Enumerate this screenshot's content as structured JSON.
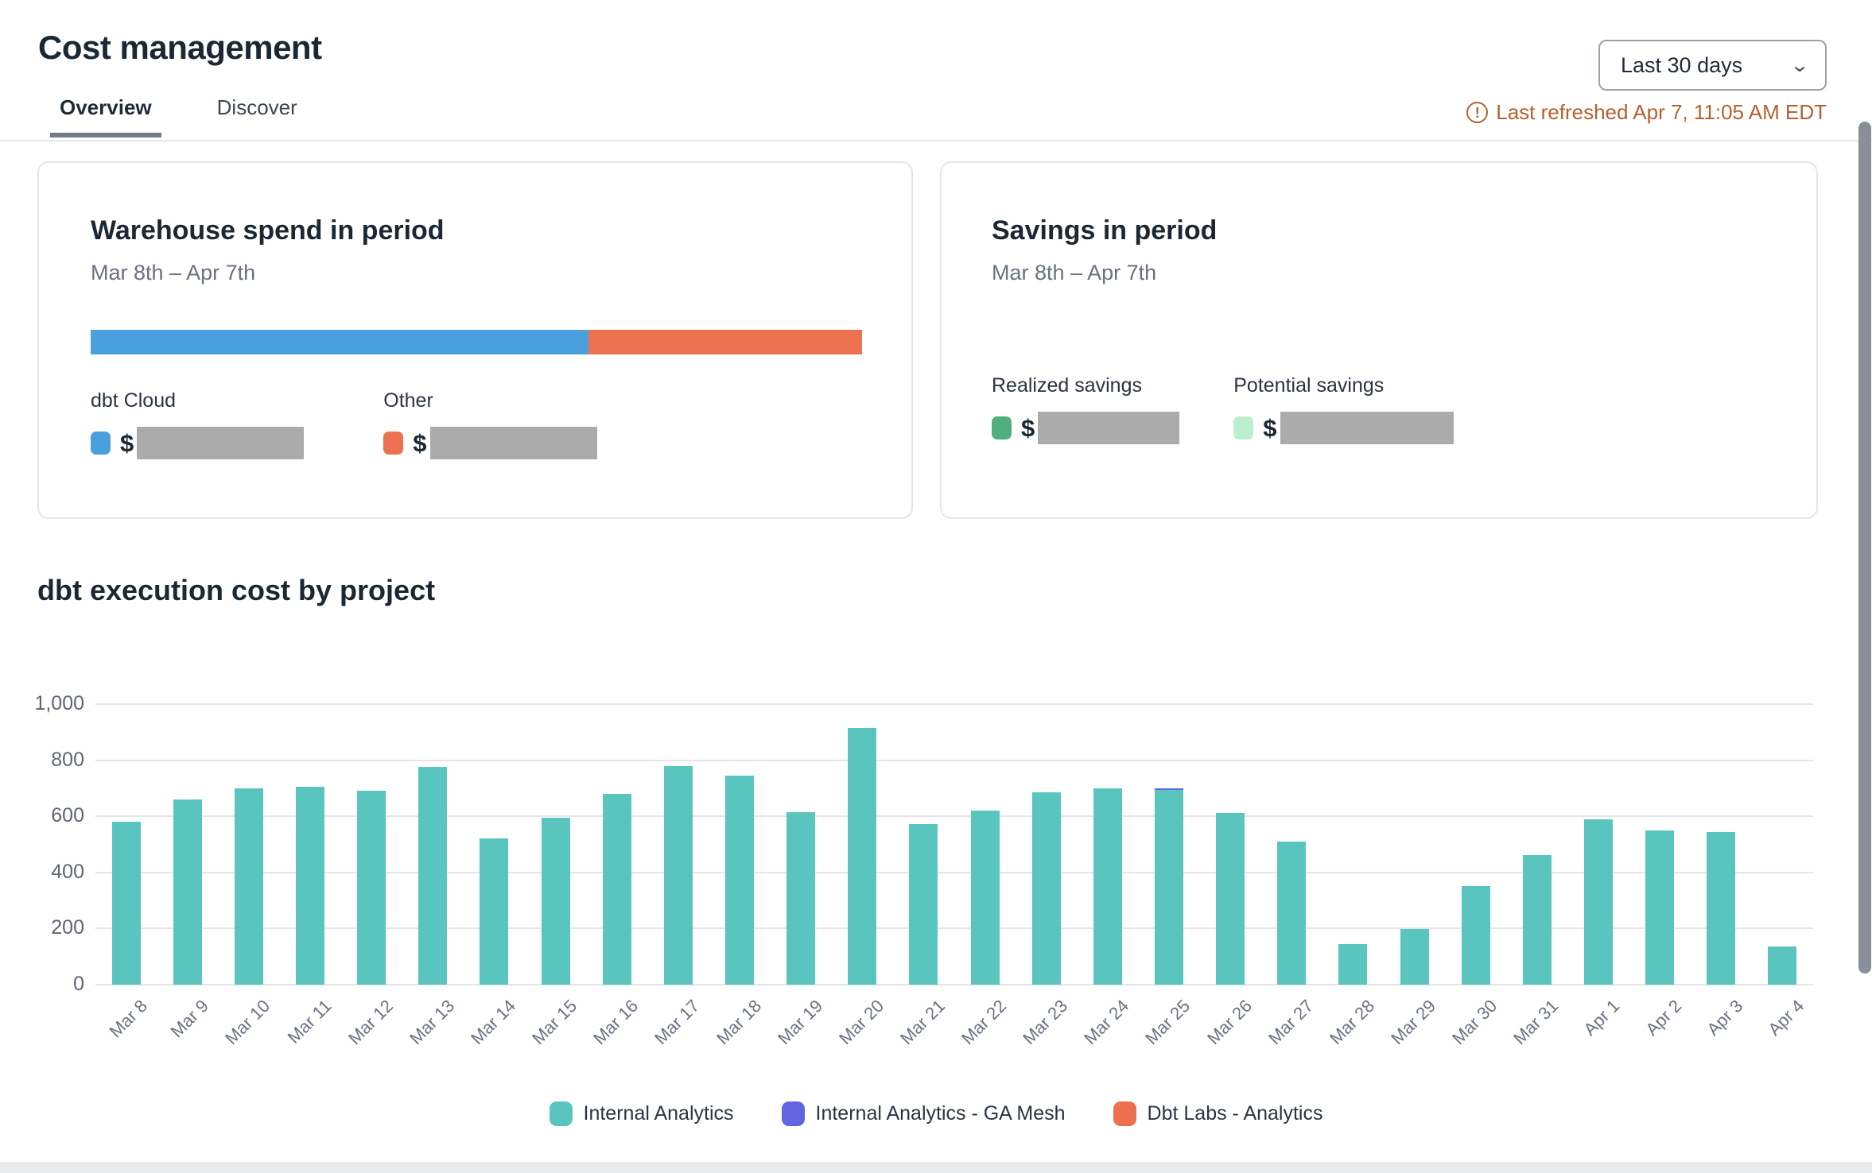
{
  "header": {
    "title": "Cost management",
    "tabs": [
      {
        "label": "Overview",
        "active": true
      },
      {
        "label": "Discover",
        "active": false
      }
    ],
    "range_selector": {
      "value": "Last 30 days",
      "chevron_icon": "chevron-down-icon"
    },
    "last_refreshed": "Last refreshed Apr 7, 11:05 AM EDT",
    "warning_icon": "exclamation-circle-icon",
    "warning_color": "#b4612e"
  },
  "cards": {
    "warehouse": {
      "title": "Warehouse spend in period",
      "period": "Mar 8th – Apr 7th",
      "bar_segments": [
        {
          "name": "dbt Cloud",
          "color": "#4aa0dd",
          "percent": 64.5
        },
        {
          "name": "Other",
          "color": "#ec7150",
          "percent": 35.5
        }
      ],
      "stats": [
        {
          "label": "dbt Cloud",
          "swatch_color": "#4aa0dd",
          "currency": "$",
          "value_redacted": true,
          "redacted_width": 210
        },
        {
          "label": "Other",
          "swatch_color": "#ec7150",
          "currency": "$",
          "value_redacted": true,
          "redacted_width": 210
        }
      ]
    },
    "savings": {
      "title": "Savings in period",
      "period": "Mar 8th – Apr 7th",
      "stats": [
        {
          "label": "Realized savings",
          "swatch_color": "#50ae7f",
          "currency": "$",
          "value_redacted": true,
          "redacted_width": 178
        },
        {
          "label": "Potential savings",
          "swatch_color": "#bceed0",
          "currency": "$",
          "value_redacted": true,
          "redacted_width": 218
        }
      ]
    }
  },
  "chart_section": {
    "title": "dbt execution cost by project"
  },
  "chart_data": {
    "type": "bar",
    "title": "dbt execution cost by project",
    "categories": [
      "Mar 8",
      "Mar 9",
      "Mar 10",
      "Mar 11",
      "Mar 12",
      "Mar 13",
      "Mar 14",
      "Mar 15",
      "Mar 16",
      "Mar 17",
      "Mar 18",
      "Mar 19",
      "Mar 20",
      "Mar 21",
      "Mar 22",
      "Mar 23",
      "Mar 24",
      "Mar 25",
      "Mar 26",
      "Mar 27",
      "Mar 28",
      "Mar 29",
      "Mar 30",
      "Mar 31",
      "Apr 1",
      "Apr 2",
      "Apr 3",
      "Apr 4"
    ],
    "series": [
      {
        "name": "Internal Analytics",
        "color": "#5ac5bf",
        "values": [
          580,
          660,
          700,
          705,
          690,
          775,
          520,
          595,
          680,
          780,
          745,
          615,
          915,
          572,
          620,
          685,
          700,
          695,
          612,
          510,
          145,
          197,
          350,
          461,
          588,
          550,
          543,
          135
        ]
      },
      {
        "name": "Internal Analytics - GA Mesh",
        "color": "#6165df",
        "values": [
          0,
          0,
          0,
          0,
          0,
          0,
          0,
          0,
          0,
          0,
          0,
          0,
          0,
          0,
          0,
          0,
          0,
          6,
          0,
          0,
          0,
          0,
          0,
          0,
          0,
          0,
          0,
          0
        ]
      },
      {
        "name": "Dbt Labs - Analytics",
        "color": "#ec6f50",
        "values": [
          0,
          0,
          0,
          0,
          0,
          0,
          0,
          0,
          0,
          0,
          0,
          0,
          0,
          0,
          0,
          0,
          0,
          0,
          0,
          0,
          0,
          0,
          0,
          0,
          0,
          0,
          0,
          0
        ]
      }
    ],
    "xlabel": "",
    "ylabel": "",
    "ylim": [
      0,
      1000
    ],
    "yticks": [
      0,
      200,
      400,
      600,
      800,
      1000
    ],
    "ytick_labels": [
      "0",
      "200",
      "400",
      "600",
      "800",
      "1,000"
    ],
    "grid": true,
    "legend_position": "bottom",
    "bar_stacked": true
  }
}
